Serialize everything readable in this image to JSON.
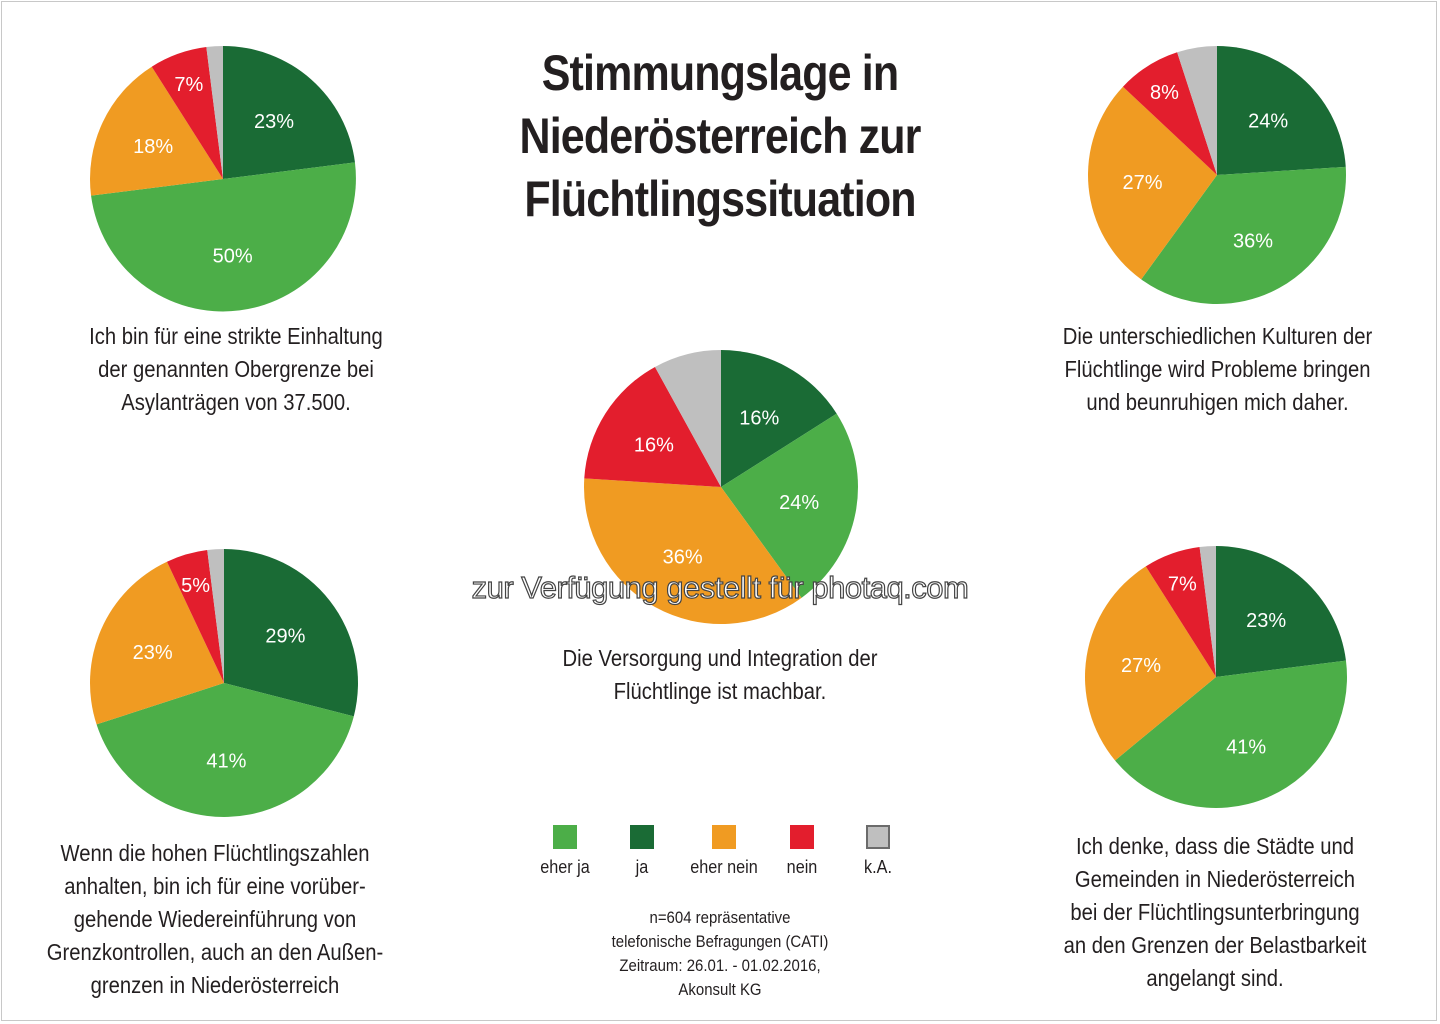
{
  "title_lines": [
    "Stimmungslage in",
    "Niederösterreich zur",
    "Flüchtlingssituation"
  ],
  "colors": {
    "eher_ja": "#4cae48",
    "ja": "#1a6b35",
    "eher_nein": "#f09b22",
    "nein": "#e31e2d",
    "ka": "#bfbfbf"
  },
  "legend": [
    {
      "key": "eher_ja",
      "label": "eher ja"
    },
    {
      "key": "ja",
      "label": "ja"
    },
    {
      "key": "eher_nein",
      "label": "eher nein"
    },
    {
      "key": "nein",
      "label": "nein"
    },
    {
      "key": "ka",
      "label": "k.A."
    }
  ],
  "source_lines": [
    "n=604 repräsentative",
    "telefonische Befragungen (CATI)",
    "Zeitraum: 26.01. - 01.02.2016,",
    "Akonsult KG"
  ],
  "watermark": "zur Verfügung gestellt für photaq.com",
  "chart_data": [
    {
      "type": "pie",
      "caption_lines": [
        "Ich bin für eine strikte Einhaltung",
        "der genannten Obergrenze bei",
        "Asylanträgen von 37.500."
      ],
      "slices": [
        {
          "key": "ja",
          "value": 23,
          "label": "23%"
        },
        {
          "key": "eher_ja",
          "value": 50,
          "label": "50%"
        },
        {
          "key": "eher_nein",
          "value": 18,
          "label": "18%"
        },
        {
          "key": "nein",
          "value": 7,
          "label": "7%"
        },
        {
          "key": "ka",
          "value": 2,
          "label": ""
        }
      ]
    },
    {
      "type": "pie",
      "caption_lines": [
        "Die unterschiedlichen Kulturen der",
        "Flüchtlinge wird Probleme bringen",
        "und beunruhigen mich daher."
      ],
      "slices": [
        {
          "key": "ja",
          "value": 24,
          "label": "24%"
        },
        {
          "key": "eher_ja",
          "value": 36,
          "label": "36%"
        },
        {
          "key": "eher_nein",
          "value": 27,
          "label": "27%"
        },
        {
          "key": "nein",
          "value": 8,
          "label": "8%"
        },
        {
          "key": "ka",
          "value": 5,
          "label": ""
        }
      ]
    },
    {
      "type": "pie",
      "caption_lines": [
        "Die Versorgung und Integration der",
        "Flüchtlinge ist machbar."
      ],
      "slices": [
        {
          "key": "ja",
          "value": 16,
          "label": "16%"
        },
        {
          "key": "eher_ja",
          "value": 24,
          "label": "24%"
        },
        {
          "key": "eher_nein",
          "value": 36,
          "label": "36%"
        },
        {
          "key": "nein",
          "value": 16,
          "label": "16%"
        },
        {
          "key": "ka",
          "value": 8,
          "label": ""
        }
      ]
    },
    {
      "type": "pie",
      "caption_lines": [
        "Wenn die hohen Flüchtlingszahlen",
        "anhalten, bin ich für eine vorüber-",
        "gehende Wiedereinführung von",
        "Grenzkontrollen, auch an den Außen-",
        "grenzen in Niederösterreich"
      ],
      "slices": [
        {
          "key": "ja",
          "value": 29,
          "label": "29%"
        },
        {
          "key": "eher_ja",
          "value": 41,
          "label": "41%"
        },
        {
          "key": "eher_nein",
          "value": 23,
          "label": "23%"
        },
        {
          "key": "nein",
          "value": 5,
          "label": "5%"
        },
        {
          "key": "ka",
          "value": 2,
          "label": ""
        }
      ]
    },
    {
      "type": "pie",
      "caption_lines": [
        "Ich denke, dass die Städte und",
        "Gemeinden in Niederösterreich",
        "bei der Flüchtlingsunterbringung",
        "an den Grenzen der Belastbarkeit",
        "angelangt sind."
      ],
      "slices": [
        {
          "key": "ja",
          "value": 23,
          "label": "23%"
        },
        {
          "key": "eher_ja",
          "value": 41,
          "label": "41%"
        },
        {
          "key": "eher_nein",
          "value": 27,
          "label": "27%"
        },
        {
          "key": "nein",
          "value": 7,
          "label": "7%"
        },
        {
          "key": "ka",
          "value": 2,
          "label": ""
        }
      ]
    }
  ]
}
